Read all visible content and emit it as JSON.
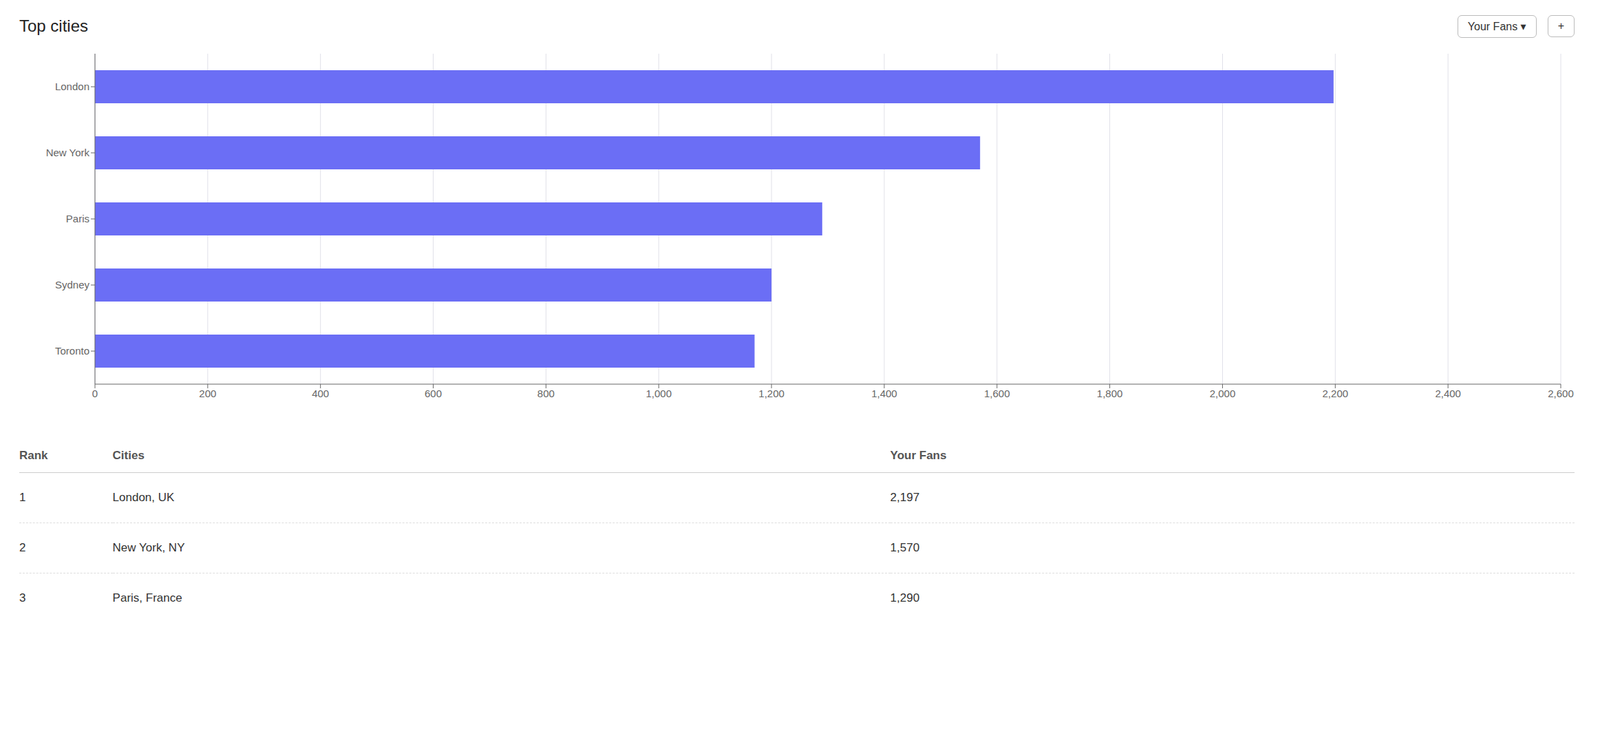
{
  "chart_data": {
    "type": "bar",
    "title": "Top cities",
    "orientation": "horizontal",
    "categories": [
      "London",
      "New York",
      "Paris",
      "Sydney",
      "Toronto"
    ],
    "values": [
      2197,
      1570,
      1290,
      1200,
      1170
    ],
    "color": "#6B6EF5",
    "xlim": [
      0,
      2600
    ],
    "xticks": [
      0,
      200,
      400,
      600,
      800,
      {
        "value": 1000,
        "label": "1,000"
      },
      {
        "value": 1200,
        "label": "1,200"
      },
      {
        "value": 1400,
        "label": "1,400"
      },
      {
        "value": 1600,
        "label": "1,600"
      },
      {
        "value": 1800,
        "label": "1,800"
      },
      {
        "value": 2000,
        "label": "2,000"
      },
      {
        "value": 2200,
        "label": "2,200"
      },
      {
        "value": 2400,
        "label": "2,400"
      },
      {
        "value": 2600,
        "label": "2,600"
      }
    ],
    "grid": true,
    "annotations": [
      "Your Fans ▾",
      "+"
    ],
    "table": {
      "headers": [
        "Rank",
        "Cities",
        "Your Fans"
      ],
      "rows": [
        [
          "1",
          "London, UK",
          "2,197"
        ],
        [
          "2",
          "New York, NY",
          "1,570"
        ],
        [
          "3",
          "Paris, France",
          "1,290"
        ]
      ]
    }
  }
}
